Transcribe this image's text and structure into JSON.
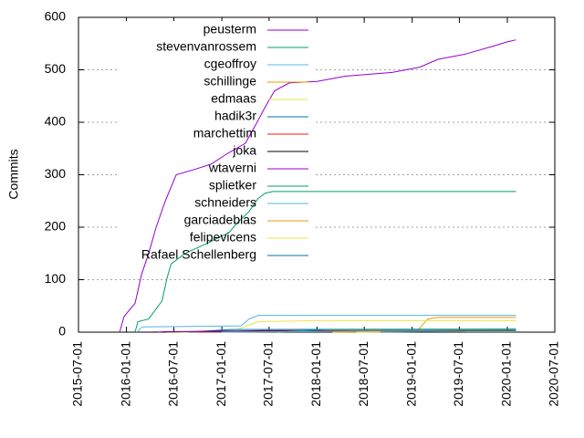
{
  "chart_data": {
    "type": "line",
    "ylabel": "Commits",
    "xlim": [
      "2015-07-01",
      "2020-07-01"
    ],
    "xticks": [
      "2015-07-01",
      "2016-01-01",
      "2016-07-01",
      "2017-01-01",
      "2017-07-01",
      "2018-01-01",
      "2018-07-01",
      "2019-01-01",
      "2019-07-01",
      "2020-01-01",
      "2020-07-01"
    ],
    "ylim": [
      0,
      600
    ],
    "yticks": [
      0,
      100,
      200,
      300,
      400,
      500,
      600
    ],
    "grid": true,
    "series": [
      {
        "name": "peusterm",
        "color": "#9400d3",
        "x": [
          "2015-12-06",
          "2015-12-23",
          "2016-02-03",
          "2016-02-28",
          "2016-03-26",
          "2016-04-24",
          "2016-05-29",
          "2016-07-10",
          "2016-09-18",
          "2016-11-20",
          "2017-01-21",
          "2017-04-01",
          "2017-05-16",
          "2017-06-17",
          "2017-07-22",
          "2017-09-16",
          "2018-01-01",
          "2018-04-22",
          "2018-10-16",
          "2019-01-30",
          "2019-04-10",
          "2019-07-24",
          "2019-11-07",
          "2019-12-30",
          "2020-02-03"
        ],
        "values": [
          0,
          30,
          55,
          110,
          150,
          200,
          250,
          300,
          310,
          320,
          340,
          360,
          400,
          430,
          460,
          475,
          478,
          488,
          495,
          505,
          520,
          530,
          545,
          553,
          557
        ]
      },
      {
        "name": "stevenvanrossem",
        "color": "#009e73",
        "x": [
          "2016-02-03",
          "2016-02-14",
          "2016-03-26",
          "2016-05-17",
          "2016-06-03",
          "2016-06-20",
          "2016-08-12",
          "2016-11-08",
          "2017-01-28",
          "2017-03-04",
          "2017-04-15",
          "2017-05-20",
          "2017-06-17",
          "2017-07-15",
          "2020-02-03"
        ],
        "values": [
          0,
          20,
          25,
          60,
          100,
          130,
          150,
          170,
          190,
          210,
          230,
          255,
          265,
          268,
          268
        ]
      },
      {
        "name": "cgeoffroy",
        "color": "#56b4e9",
        "x": [
          "2016-02-10",
          "2016-03-01",
          "2017-03-15",
          "2017-04-15",
          "2017-05-20",
          "2020-02-03"
        ],
        "values": [
          0,
          10,
          12,
          25,
          32,
          32
        ]
      },
      {
        "name": "schillinge",
        "color": "#e69f00",
        "x": [
          "2016-06-01",
          "2019-01-20",
          "2019-03-01",
          "2019-04-10",
          "2020-02-03"
        ],
        "values": [
          0,
          2,
          25,
          28,
          28
        ]
      },
      {
        "name": "edmaas",
        "color": "#f0e442",
        "x": [
          "2016-08-01",
          "2017-03-01",
          "2017-05-20",
          "2018-01-01",
          "2020-02-03"
        ],
        "values": [
          0,
          5,
          20,
          22,
          22
        ]
      },
      {
        "name": "hadik3r",
        "color": "#0072b2",
        "x": [
          "2016-09-01",
          "2017-02-01",
          "2020-02-03"
        ],
        "values": [
          0,
          5,
          6
        ]
      },
      {
        "name": "marchettim",
        "color": "#e51e10",
        "x": [
          "2016-10-01",
          "2017-06-01",
          "2020-02-03"
        ],
        "values": [
          0,
          3,
          3
        ]
      },
      {
        "name": "joka",
        "color": "#000000",
        "x": [
          "2016-04-01",
          "2017-01-01",
          "2020-02-03"
        ],
        "values": [
          0,
          2,
          2
        ]
      },
      {
        "name": "wtaverni",
        "color": "#9400d3",
        "x": [
          "2016-05-01",
          "2016-06-01",
          "2020-02-03"
        ],
        "values": [
          0,
          1,
          1
        ]
      },
      {
        "name": "splietker",
        "color": "#009e73",
        "x": [
          "2017-08-01",
          "2018-02-01",
          "2020-02-03"
        ],
        "values": [
          0,
          5,
          5
        ]
      },
      {
        "name": "schneiders",
        "color": "#56b4e9",
        "x": [
          "2017-01-01",
          "2018-06-01",
          "2020-02-03"
        ],
        "values": [
          0,
          2,
          2
        ]
      },
      {
        "name": "garciadeblas",
        "color": "#e69f00",
        "x": [
          "2018-03-01",
          "2019-06-01",
          "2020-02-03"
        ],
        "values": [
          0,
          1,
          1
        ]
      },
      {
        "name": "felipevicens",
        "color": "#f0e442",
        "x": [
          "2018-06-01",
          "2019-02-01",
          "2020-02-03"
        ],
        "values": [
          0,
          1,
          1
        ]
      },
      {
        "name": "Rafael Schellenberg",
        "color": "#0072b2",
        "x": [
          "2018-09-01",
          "2019-08-01",
          "2020-02-03"
        ],
        "values": [
          0,
          2,
          2
        ]
      }
    ]
  }
}
